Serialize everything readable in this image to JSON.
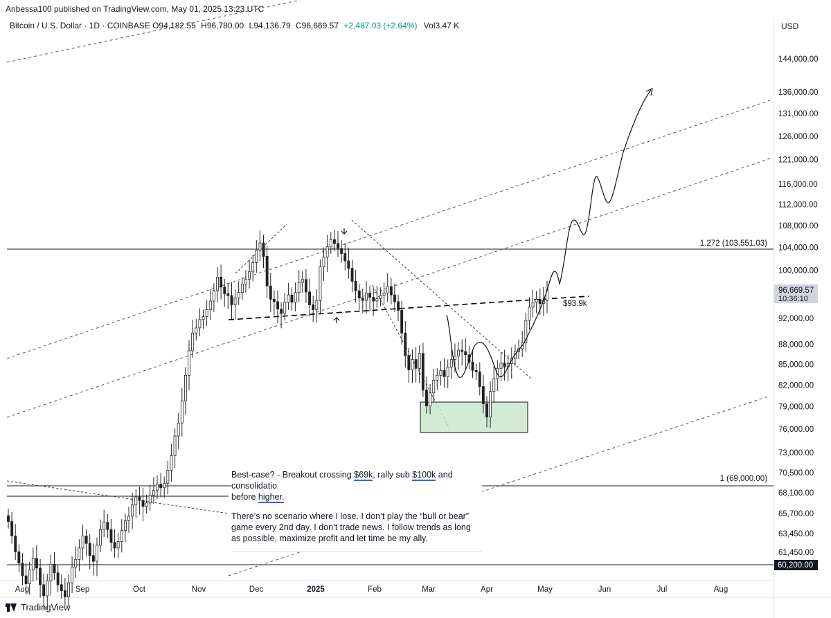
{
  "publisher_line": "Anbessa100 published on TradingView.com, May 01, 2025 13:23 UTC",
  "symbol": {
    "name": "Bitcoin / U.S. Dollar · 1D · COINBASE",
    "o_label": "O",
    "o": "94,182.55",
    "h_label": "H",
    "h": "96,780.00",
    "l_label": "L",
    "l": "94,136.79",
    "c_label": "C",
    "c": "96,669.57",
    "change": "+2,487.03 (+2.64%)",
    "vol_label": "Vol",
    "vol": "3.47 K"
  },
  "currency": "USD",
  "note": {
    "line1_a": "Best-case? - Breakout crossing ",
    "line1_b": "$69k",
    "line1_c": ", rally sub ",
    "line1_d": "$100k",
    "line1_e": " and consolidatio",
    "line2_a": "before ",
    "line2_b": "higher.",
    "para2": "There’s no scenario where I lose. I don’t play the “bull or bear” game every 2nd day. I don’t trade news. I follow trends as long as possible, maximize profit and let time be my ally."
  },
  "footer_brand": "TradingView",
  "chart_data": {
    "type": "candlestick",
    "price_axis_labels": [
      "144,000.00",
      "136,000.00",
      "131,000.00",
      "126,000.00",
      "121,000.00",
      "116,000.00",
      "112,000.00",
      "108,000.00",
      "104,000.00",
      "100,000.00",
      "92,000.00",
      "88,000.00",
      "85,000.00",
      "82,000.00",
      "79,000.00",
      "76,000.00",
      "73,000.00",
      "70,500.00",
      "68,100.00",
      "65,700.00",
      "63,450.00",
      "61,450.00"
    ],
    "time_axis_labels": [
      "Aug",
      "Sep",
      "Oct",
      "Nov",
      "Dec",
      "2025",
      "Feb",
      "Mar",
      "Apr",
      "May",
      "Jun",
      "Jul",
      "Aug"
    ],
    "y_scale": "log",
    "current_price": "96,669.57",
    "countdown": "10:36:10",
    "level_60200": "60,200.00",
    "fib_1272": "1.272 (103,551.03)",
    "fib_1": "1 (69,000.00)",
    "annotation_939k": "$93,9k",
    "close_series": [
      64800,
      63200,
      61500,
      60300,
      59000,
      58200,
      59600,
      60800,
      59800,
      58100,
      57000,
      58500,
      60200,
      59300,
      58100,
      57500,
      56900,
      58300,
      59900,
      60700,
      61900,
      63200,
      62400,
      61100,
      60500,
      62200,
      63900,
      64700,
      63900,
      62500,
      61900,
      62600,
      63800,
      64900,
      65400,
      66700,
      67600,
      67200,
      66500,
      66900,
      67800,
      68400,
      69100,
      68700,
      69200,
      70800,
      72600,
      75100,
      76800,
      79800,
      83400,
      87000,
      89700,
      90500,
      91800,
      92300,
      93400,
      94800,
      96500,
      98800,
      97100,
      96000,
      95700,
      94200,
      95300,
      96200,
      97600,
      98400,
      99700,
      101300,
      103500,
      104800,
      102400,
      97300,
      95100,
      94700,
      93500,
      92800,
      94600,
      95800,
      94600,
      96200,
      97900,
      98400,
      96300,
      94200,
      93400,
      94900,
      100600,
      102300,
      104100,
      105400,
      104700,
      103800,
      102900,
      101600,
      100300,
      98100,
      96500,
      95300,
      94900,
      96100,
      95400,
      94800,
      95200,
      95700,
      96100,
      97200,
      95800,
      94700,
      93300,
      89700,
      86300,
      84200,
      85700,
      84400,
      86600,
      81300,
      79100,
      80900,
      82700,
      83400,
      84100,
      83200,
      84600,
      85700,
      86200,
      87100,
      86900,
      86400,
      85300,
      84100,
      83900,
      81800,
      79400,
      77600,
      81100,
      82900,
      84400,
      85200,
      84600,
      85100,
      85800,
      86900,
      87300,
      88200,
      91700,
      93800,
      94600,
      95100,
      94400,
      94900,
      96670
    ]
  }
}
